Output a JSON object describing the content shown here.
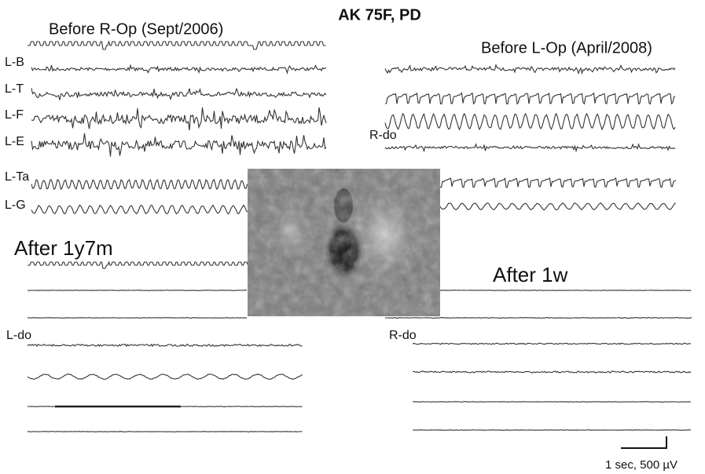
{
  "title": "AK 75F, PD",
  "panels": [
    {
      "label": "Before R-Op (Sept/2006)",
      "channels": [
        "L-B",
        "L-T",
        "L-F",
        "L-E",
        "L-Ta",
        "L-G"
      ]
    },
    {
      "label": "Before L-Op (April/2008)",
      "channels": [
        "R-do"
      ]
    },
    {
      "label": "After 1y7m",
      "channels": [
        "L-do"
      ]
    },
    {
      "label": "After 1w",
      "channels": [
        "R-do"
      ]
    }
  ],
  "scale_bar": "1 sec, 500 µV"
}
